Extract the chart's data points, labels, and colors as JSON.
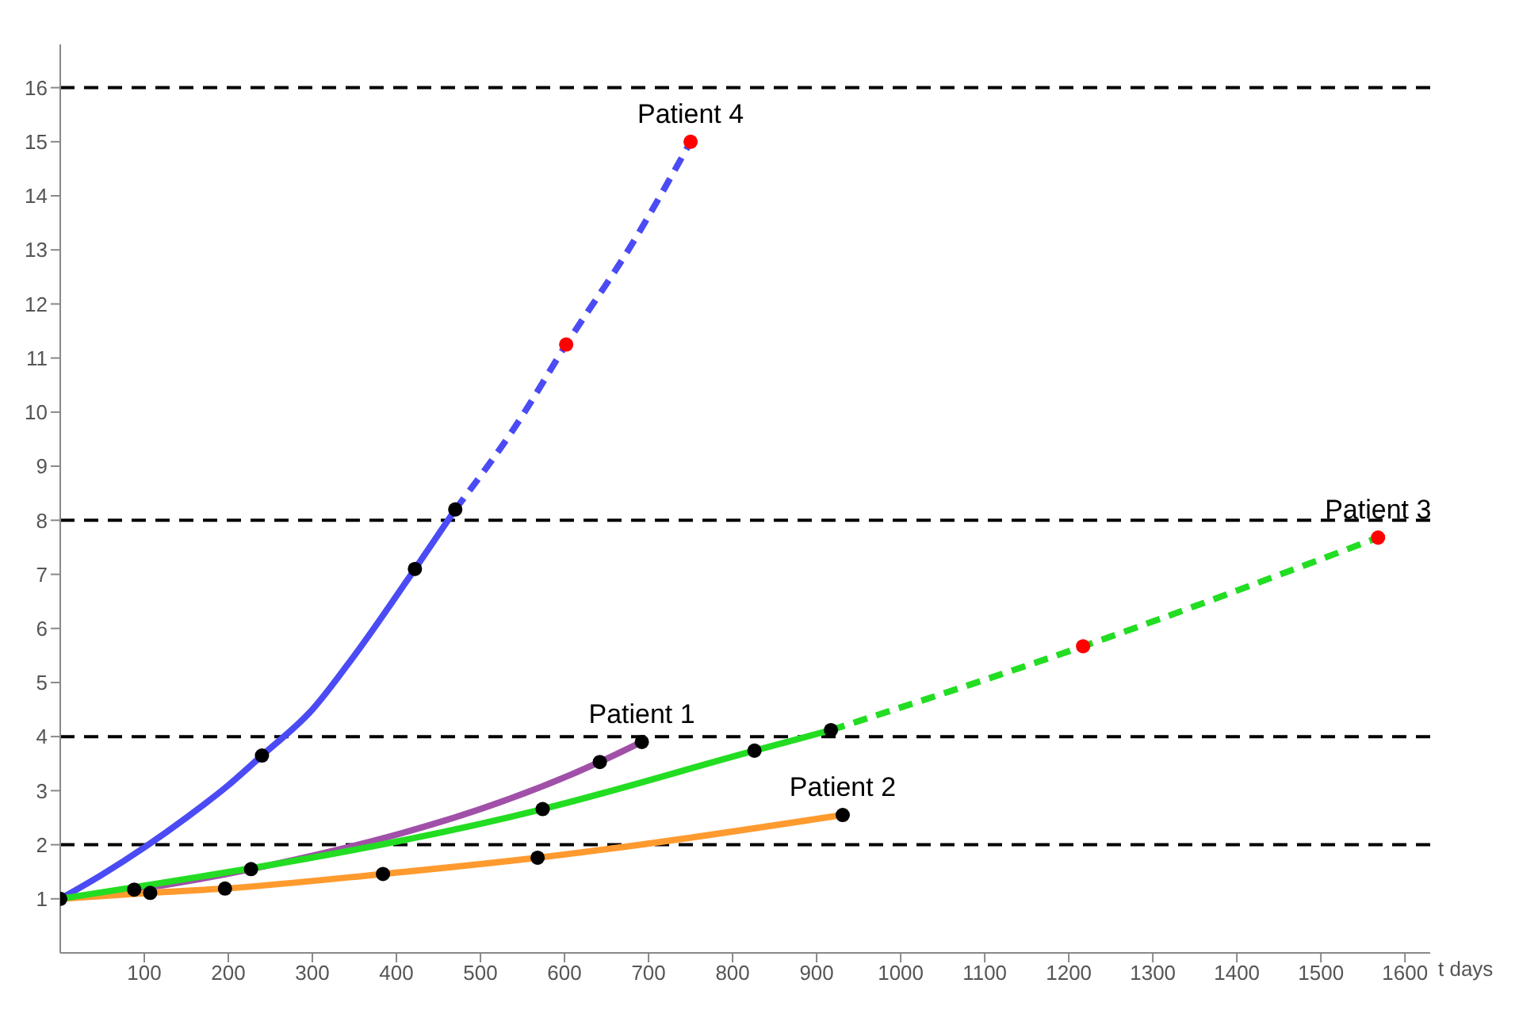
{
  "chart_data": {
    "type": "line",
    "xlabel": "t days",
    "xlim": [
      0,
      1630
    ],
    "ylim": [
      0,
      16.8
    ],
    "xticks": [
      100,
      200,
      300,
      400,
      500,
      600,
      700,
      800,
      900,
      1000,
      1100,
      1200,
      1300,
      1400,
      1500,
      1600
    ],
    "yticks": [
      1,
      2,
      3,
      4,
      5,
      6,
      7,
      8,
      9,
      10,
      11,
      12,
      13,
      14,
      15,
      16
    ],
    "series": [
      {
        "type": "line",
        "color": "#4b4bf5",
        "line_style": "solid",
        "marker": "none",
        "x": [
          0,
          50,
          100,
          150,
          200,
          240,
          300,
          350,
          422,
          470
        ],
        "values": [
          1,
          1.45,
          1.95,
          2.5,
          3.1,
          3.65,
          4.5,
          5.5,
          7.1,
          8.2
        ]
      },
      {
        "type": "line",
        "color": "#4b4bf5",
        "line_style": "dashed",
        "marker": "none",
        "x": [
          470,
          540,
          602,
          680,
          750
        ],
        "values": [
          8.2,
          9.7,
          11.25,
          13.1,
          15
        ]
      },
      {
        "type": "line",
        "color": "#a050a8",
        "line_style": "solid",
        "marker": "none",
        "x": [
          0,
          88,
          227,
          642,
          692
        ],
        "values": [
          1,
          1.17,
          1.55,
          3.53,
          3.9
        ]
      },
      {
        "type": "line",
        "color": "#ff9a2e",
        "line_style": "solid",
        "marker": "none",
        "x": [
          0,
          107,
          196,
          384,
          568,
          931
        ],
        "values": [
          1,
          1.11,
          1.19,
          1.46,
          1.76,
          2.55
        ]
      },
      {
        "type": "line",
        "color": "#22dd22",
        "line_style": "solid",
        "marker": "none",
        "x": [
          0,
          574,
          826,
          917
        ],
        "values": [
          1,
          2.66,
          3.74,
          4.12
        ]
      },
      {
        "type": "line",
        "color": "#22dd22",
        "line_style": "dashed",
        "marker": "none",
        "x": [
          917,
          1217,
          1568
        ],
        "values": [
          4.12,
          5.67,
          7.68
        ]
      },
      {
        "type": "scatter",
        "color": "#000000",
        "marker": "circle",
        "x": [
          0,
          240,
          422,
          470,
          88,
          227,
          642,
          692,
          107,
          196,
          384,
          568,
          931,
          574,
          826,
          917
        ],
        "values": [
          1,
          3.65,
          7.1,
          8.2,
          1.17,
          1.55,
          3.53,
          3.9,
          1.11,
          1.19,
          1.46,
          1.76,
          2.55,
          2.66,
          3.74,
          4.12
        ]
      },
      {
        "type": "scatter",
        "color": "#ff0000",
        "marker": "circle",
        "x": [
          602,
          750,
          1217,
          1568
        ],
        "values": [
          11.25,
          15,
          5.67,
          7.68
        ]
      }
    ],
    "ref_lines": [
      {
        "axis": "y",
        "value": 2,
        "color": "#000000",
        "line_style": "dashed"
      },
      {
        "axis": "y",
        "value": 4,
        "color": "#000000",
        "line_style": "dashed"
      },
      {
        "axis": "y",
        "value": 8,
        "color": "#000000",
        "line_style": "dashed"
      },
      {
        "axis": "y",
        "value": 16,
        "color": "#000000",
        "line_style": "dashed"
      }
    ],
    "annotations": [
      {
        "text": "Patient 4",
        "x": 750,
        "y": 15
      },
      {
        "text": "Patient 3",
        "x": 1568,
        "y": 7.68
      },
      {
        "text": "Patient 1",
        "x": 692,
        "y": 3.9
      },
      {
        "text": "Patient 2",
        "x": 931,
        "y": 2.55
      }
    ]
  }
}
